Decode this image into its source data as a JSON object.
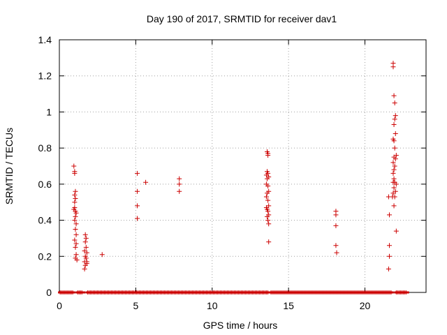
{
  "chart_data": {
    "type": "scatter",
    "title": "Day 190 of 2017, SRMTID for receiver dav1",
    "xlabel": "GPS time / hours",
    "ylabel": "SRMTID / TECUs",
    "xlim": [
      0,
      24
    ],
    "ylim": [
      0,
      1.4
    ],
    "xticks": [
      0,
      5,
      10,
      15,
      20
    ],
    "yticks": [
      0,
      0.2,
      0.4,
      0.6,
      0.8,
      1,
      1.2,
      1.4
    ],
    "ytick_labels": [
      "0",
      "0.2",
      "0.4",
      "0.6",
      "0.8",
      "1",
      "1.2",
      "1.4"
    ],
    "grid": true,
    "legend": "none",
    "marker": "+",
    "color": "#cc0000",
    "zero_segments": [
      [
        0.05,
        0.9
      ],
      [
        1.2,
        1.55
      ],
      [
        1.85,
        13.65
      ],
      [
        13.85,
        21.75
      ],
      [
        22.05,
        22.75
      ]
    ],
    "points": [
      [
        0.95,
        0.7
      ],
      [
        1.0,
        0.67
      ],
      [
        1.0,
        0.66
      ],
      [
        1.05,
        0.56
      ],
      [
        1.0,
        0.54
      ],
      [
        1.05,
        0.52
      ],
      [
        1.0,
        0.5
      ],
      [
        1.0,
        0.47
      ],
      [
        0.95,
        0.46
      ],
      [
        1.05,
        0.45
      ],
      [
        1.1,
        0.44
      ],
      [
        1.05,
        0.42
      ],
      [
        1.0,
        0.4
      ],
      [
        1.1,
        0.38
      ],
      [
        1.05,
        0.35
      ],
      [
        1.1,
        0.32
      ],
      [
        1.0,
        0.29
      ],
      [
        1.1,
        0.27
      ],
      [
        1.05,
        0.25
      ],
      [
        1.1,
        0.21
      ],
      [
        1.05,
        0.19
      ],
      [
        1.15,
        0.18
      ],
      [
        1.7,
        0.32
      ],
      [
        1.75,
        0.3
      ],
      [
        1.7,
        0.28
      ],
      [
        1.75,
        0.25
      ],
      [
        1.65,
        0.23
      ],
      [
        1.8,
        0.22
      ],
      [
        1.7,
        0.2
      ],
      [
        1.75,
        0.19
      ],
      [
        1.65,
        0.17
      ],
      [
        1.8,
        0.17
      ],
      [
        1.7,
        0.15
      ],
      [
        1.65,
        0.13
      ],
      [
        1.8,
        0.16
      ],
      [
        2.8,
        0.21
      ],
      [
        5.1,
        0.66
      ],
      [
        5.1,
        0.56
      ],
      [
        5.1,
        0.48
      ],
      [
        5.1,
        0.41
      ],
      [
        5.65,
        0.61
      ],
      [
        7.85,
        0.63
      ],
      [
        7.85,
        0.6
      ],
      [
        7.85,
        0.56
      ],
      [
        13.6,
        0.78
      ],
      [
        13.65,
        0.77
      ],
      [
        13.65,
        0.76
      ],
      [
        13.6,
        0.67
      ],
      [
        13.65,
        0.66
      ],
      [
        13.55,
        0.65
      ],
      [
        13.7,
        0.64
      ],
      [
        13.6,
        0.63
      ],
      [
        13.55,
        0.6
      ],
      [
        13.65,
        0.59
      ],
      [
        13.7,
        0.56
      ],
      [
        13.6,
        0.55
      ],
      [
        13.55,
        0.53
      ],
      [
        13.65,
        0.51
      ],
      [
        13.7,
        0.48
      ],
      [
        13.55,
        0.47
      ],
      [
        13.6,
        0.46
      ],
      [
        13.65,
        0.45
      ],
      [
        13.7,
        0.43
      ],
      [
        13.6,
        0.42
      ],
      [
        13.65,
        0.4
      ],
      [
        13.7,
        0.38
      ],
      [
        13.7,
        0.28
      ],
      [
        18.1,
        0.45
      ],
      [
        18.1,
        0.43
      ],
      [
        18.1,
        0.37
      ],
      [
        18.1,
        0.26
      ],
      [
        18.15,
        0.22
      ],
      [
        21.85,
        1.27
      ],
      [
        21.85,
        1.25
      ],
      [
        21.9,
        1.09
      ],
      [
        21.95,
        1.05
      ],
      [
        22.0,
        0.98
      ],
      [
        21.95,
        0.96
      ],
      [
        21.9,
        0.93
      ],
      [
        22.0,
        0.88
      ],
      [
        21.85,
        0.85
      ],
      [
        21.9,
        0.84
      ],
      [
        21.95,
        0.8
      ],
      [
        22.05,
        0.76
      ],
      [
        21.9,
        0.75
      ],
      [
        22.0,
        0.74
      ],
      [
        21.85,
        0.72
      ],
      [
        21.95,
        0.7
      ],
      [
        21.9,
        0.68
      ],
      [
        21.85,
        0.66
      ],
      [
        21.9,
        0.63
      ],
      [
        21.85,
        0.61
      ],
      [
        21.95,
        0.61
      ],
      [
        22.05,
        0.6
      ],
      [
        21.9,
        0.58
      ],
      [
        22.0,
        0.56
      ],
      [
        21.85,
        0.55
      ],
      [
        21.95,
        0.53
      ],
      [
        21.8,
        0.53
      ],
      [
        21.55,
        0.53
      ],
      [
        21.9,
        0.48
      ],
      [
        21.6,
        0.43
      ],
      [
        22.05,
        0.34
      ],
      [
        21.6,
        0.26
      ],
      [
        21.6,
        0.2
      ],
      [
        21.55,
        0.13
      ]
    ]
  }
}
